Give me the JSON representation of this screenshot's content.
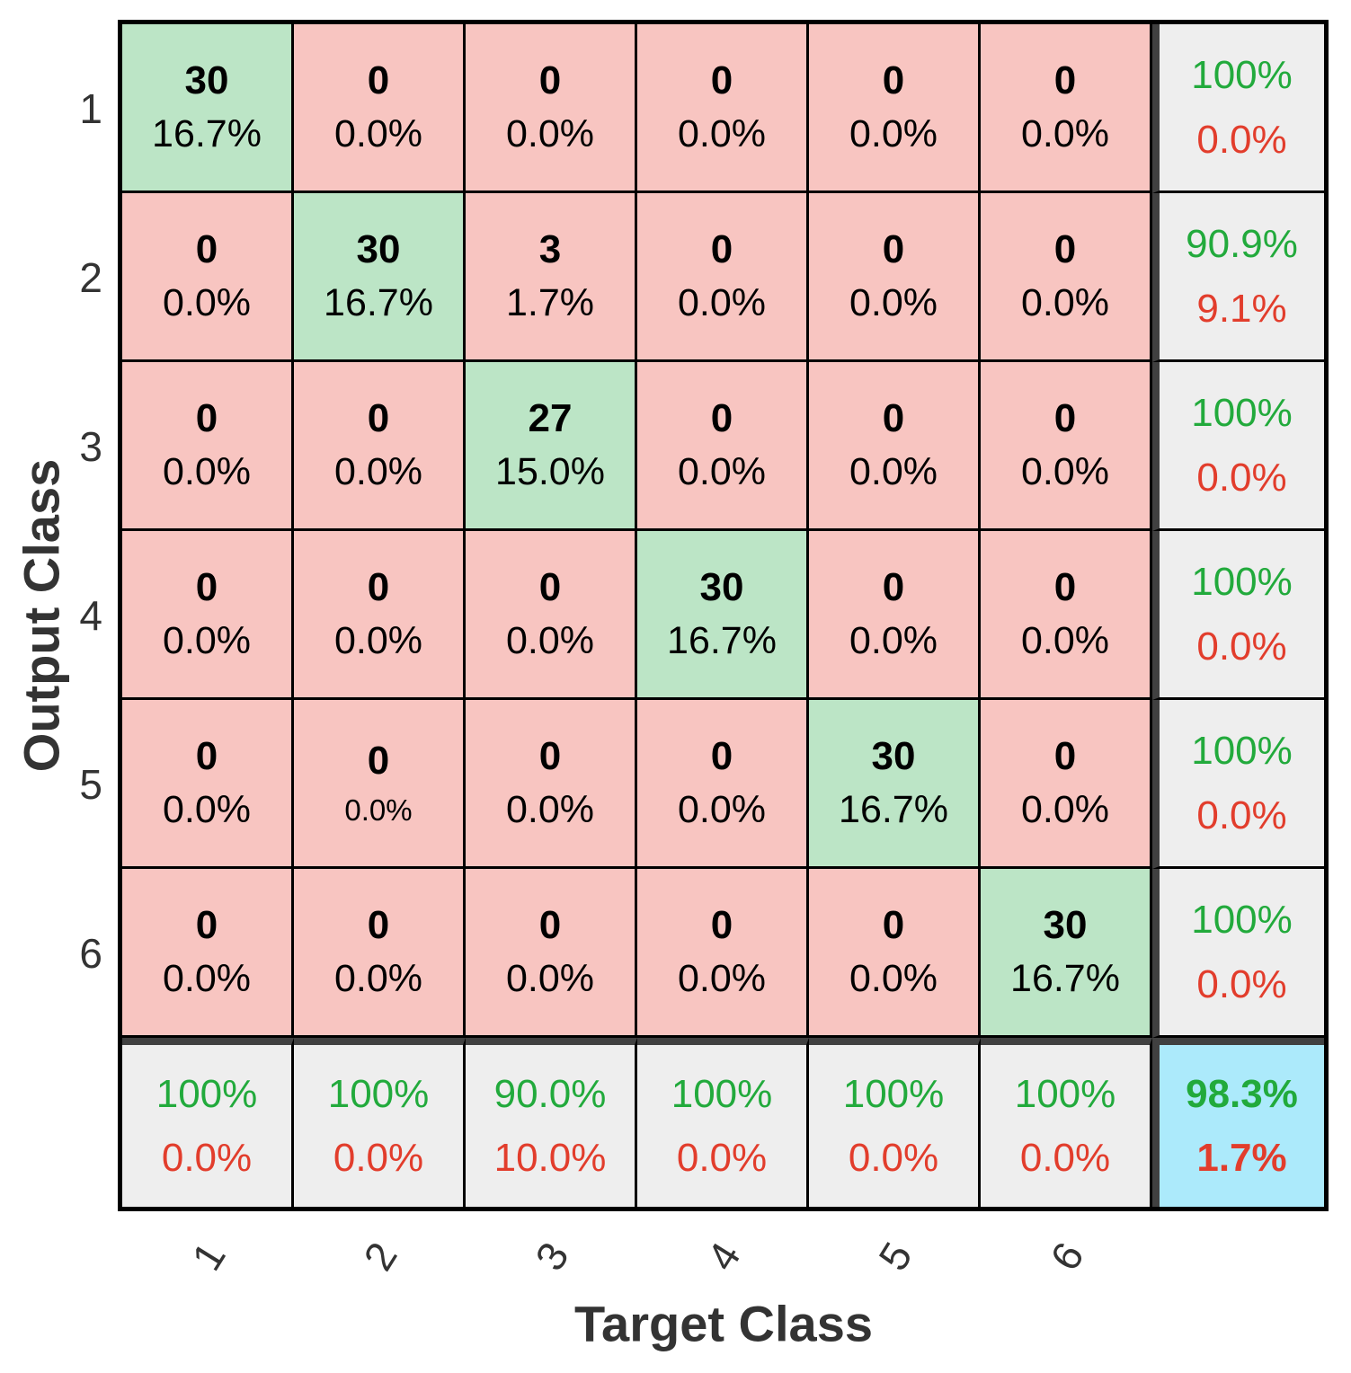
{
  "colors": {
    "diagonal_bg": "#bce5c6",
    "off_diagonal_bg": "#f8c5c1",
    "summary_bg": "#eeeeee",
    "total_bg": "#aceafb",
    "good_text": "#22aa3c",
    "bad_text": "#e23d2c",
    "cell_text": "#000000",
    "axis_text": "#333333",
    "grid_line": "#000000",
    "separator_line": "#404040"
  },
  "chart_data": {
    "type": "heatmap",
    "subtype": "confusion-matrix",
    "xlabel": "Target Class",
    "ylabel": "Output Class",
    "classes": [
      "1",
      "2",
      "3",
      "4",
      "5",
      "6"
    ],
    "counts": [
      [
        30,
        0,
        0,
        0,
        0,
        0
      ],
      [
        0,
        30,
        3,
        0,
        0,
        0
      ],
      [
        0,
        0,
        27,
        0,
        0,
        0
      ],
      [
        0,
        0,
        0,
        30,
        0,
        0
      ],
      [
        0,
        0,
        0,
        0,
        30,
        0
      ],
      [
        0,
        0,
        0,
        0,
        0,
        30
      ]
    ],
    "count_percents": [
      [
        "16.7%",
        "0.0%",
        "0.0%",
        "0.0%",
        "0.0%",
        "0.0%"
      ],
      [
        "0.0%",
        "16.7%",
        "1.7%",
        "0.0%",
        "0.0%",
        "0.0%"
      ],
      [
        "0.0%",
        "0.0%",
        "15.0%",
        "0.0%",
        "0.0%",
        "0.0%"
      ],
      [
        "0.0%",
        "0.0%",
        "0.0%",
        "16.7%",
        "0.0%",
        "0.0%"
      ],
      [
        "0.0%",
        "0.0%",
        "0.0%",
        "0.0%",
        "16.7%",
        "0.0%"
      ],
      [
        "0.0%",
        "0.0%",
        "0.0%",
        "0.0%",
        "0.0%",
        "16.7%"
      ]
    ],
    "row_summaries": [
      [
        "100%",
        "0.0%"
      ],
      [
        "90.9%",
        "9.1%"
      ],
      [
        "100%",
        "0.0%"
      ],
      [
        "100%",
        "0.0%"
      ],
      [
        "100%",
        "0.0%"
      ],
      [
        "100%",
        "0.0%"
      ]
    ],
    "col_summaries": [
      [
        "100%",
        "0.0%"
      ],
      [
        "100%",
        "0.0%"
      ],
      [
        "90.0%",
        "10.0%"
      ],
      [
        "100%",
        "0.0%"
      ],
      [
        "100%",
        "0.0%"
      ],
      [
        "100%",
        "0.0%"
      ]
    ],
    "overall": [
      "98.3%",
      "1.7%"
    ],
    "small_percent_cell": {
      "row": 5,
      "col": 2
    },
    "layout": {
      "legend": "none",
      "grid": "on"
    }
  }
}
